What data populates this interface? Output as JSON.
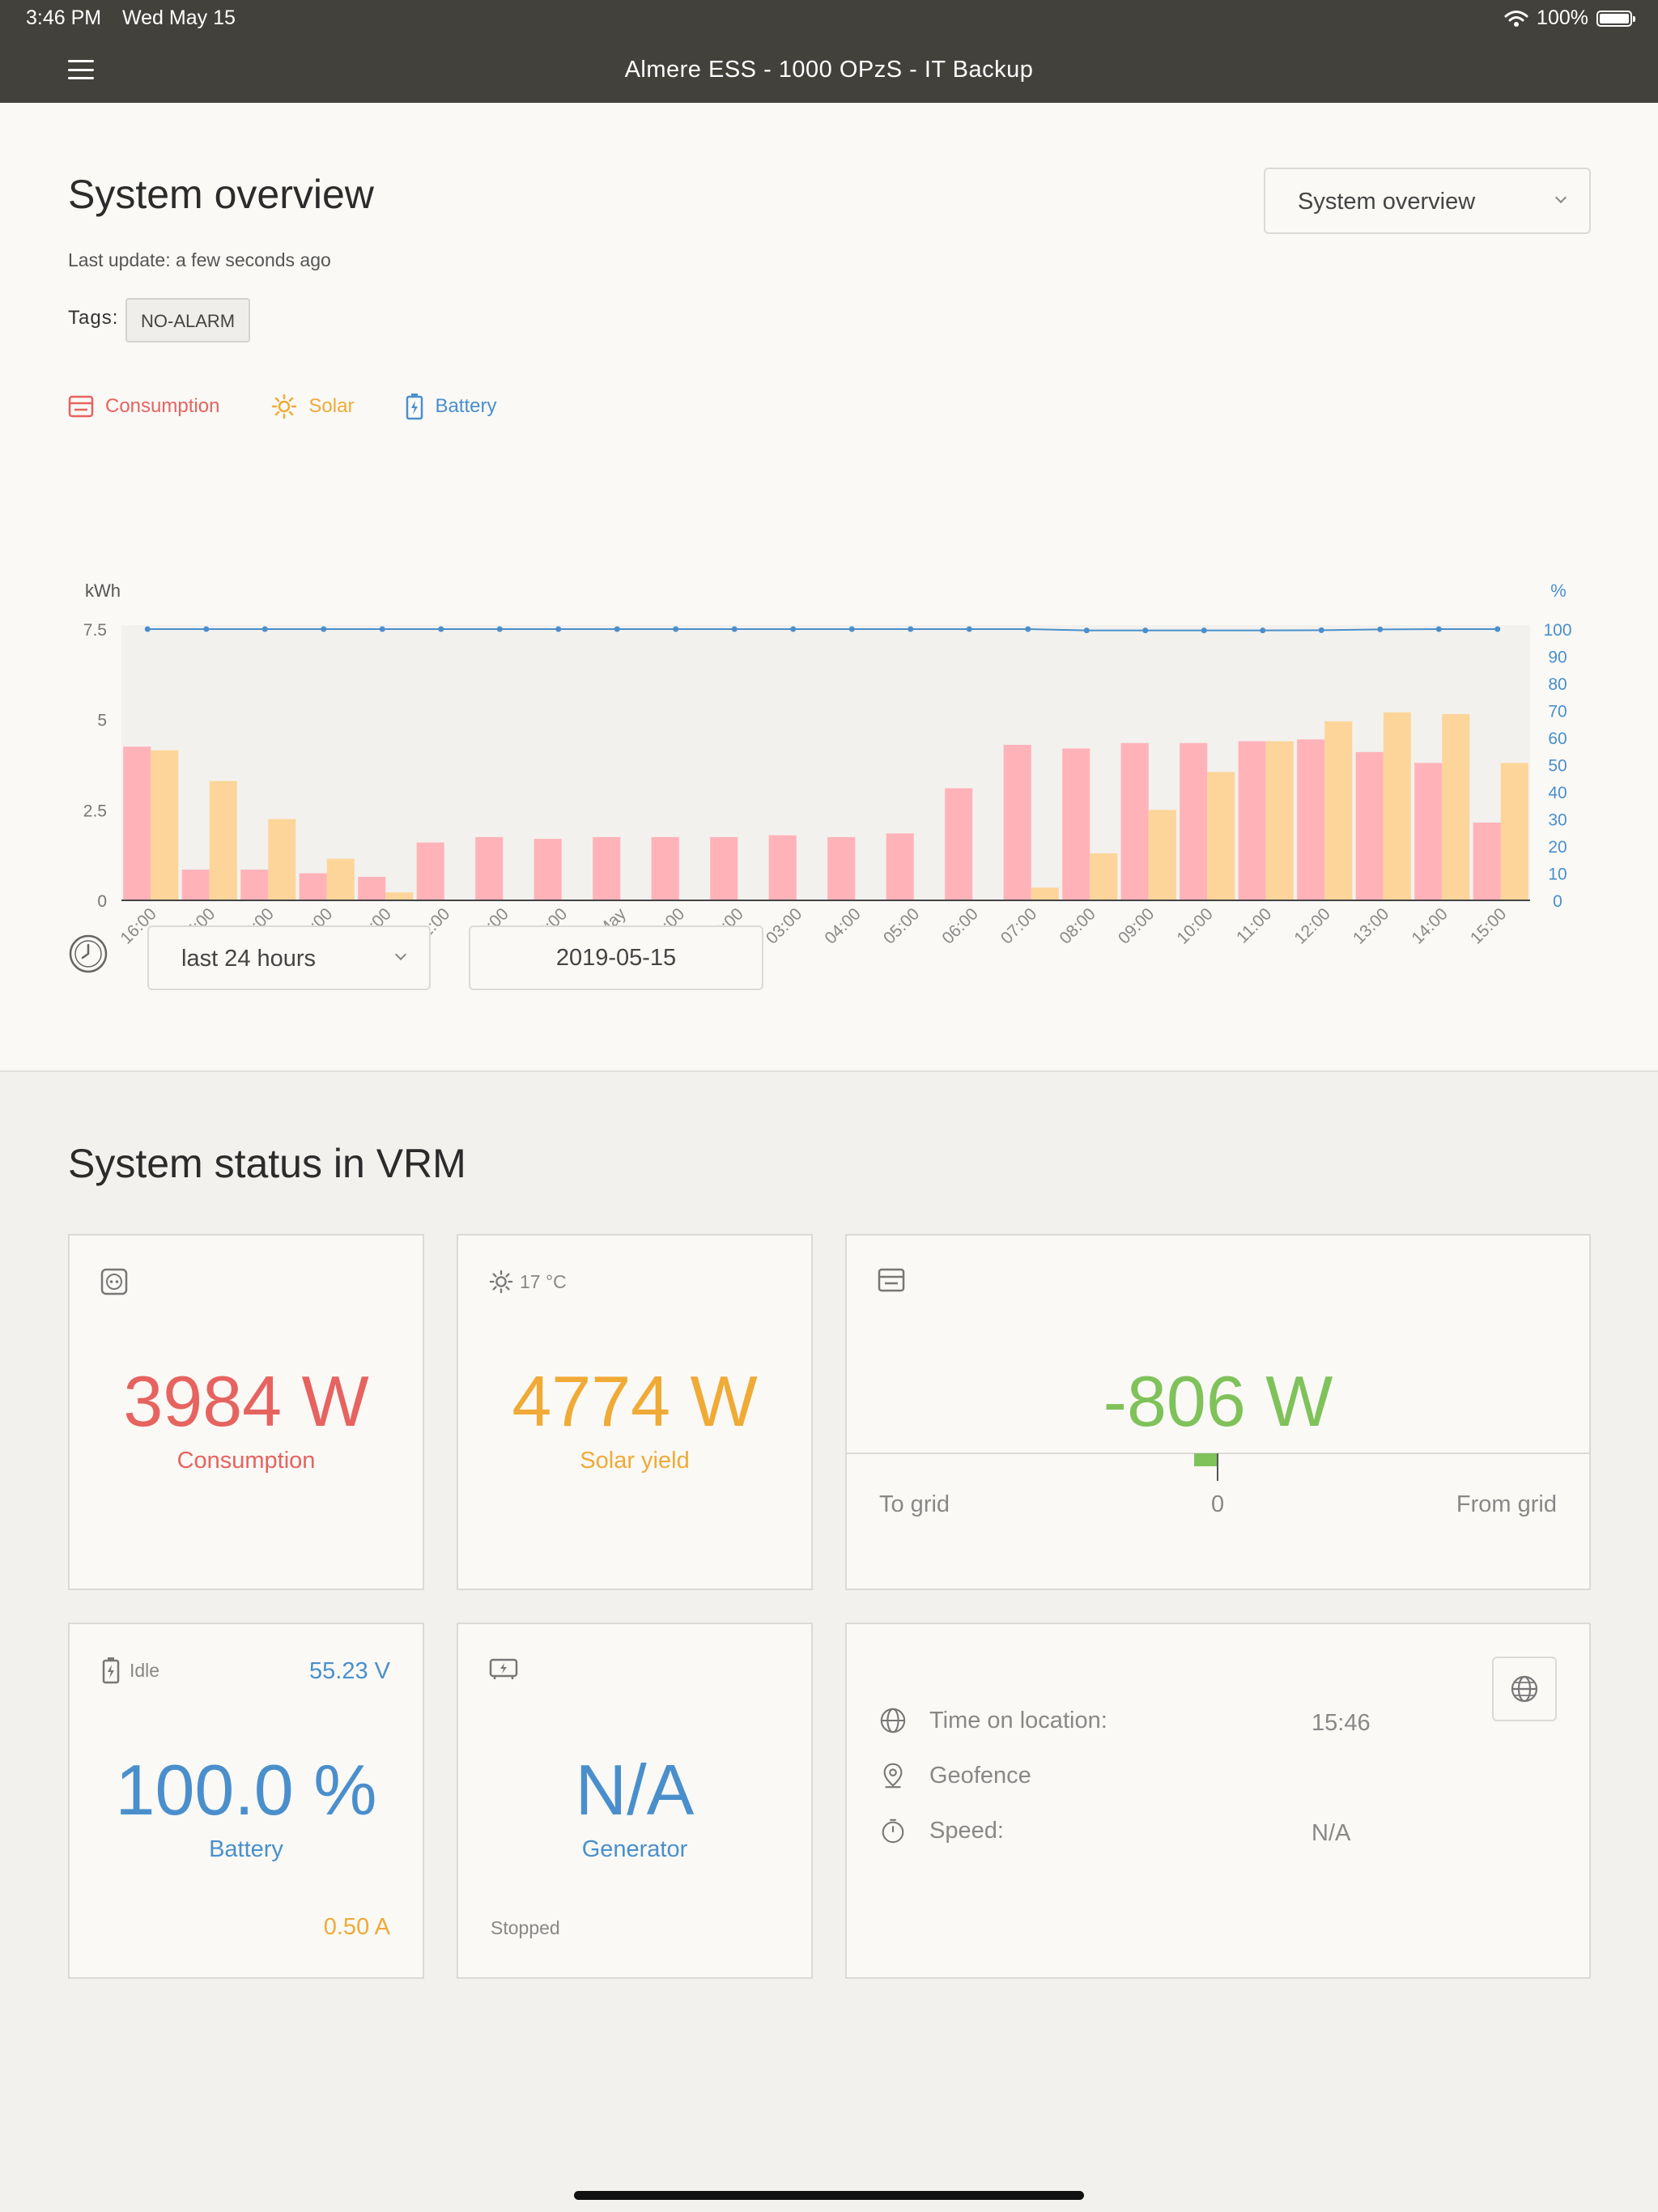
{
  "status_bar": {
    "time": "3:46 PM",
    "date": "Wed May 15",
    "battery": "100%"
  },
  "header": {
    "title": "Almere ESS - 1000 OPzS - IT Backup"
  },
  "overview": {
    "title": "System overview",
    "last_update": "Last update: a few seconds ago",
    "tags_label": "Tags:",
    "tag": "NO-ALARM",
    "view_select": "System overview",
    "legend": {
      "consumption": "Consumption",
      "solar": "Solar",
      "battery": "Battery"
    },
    "range_select": "last 24 hours",
    "date": "2019-05-15"
  },
  "colors": {
    "consumption": "#ffb3b8",
    "solar": "#fdd59a",
    "battery": "#4a8fcc",
    "accent_red": "#e6635f",
    "accent_orange": "#f0aa36",
    "accent_green": "#7fc25a",
    "header": "#43413c"
  },
  "chart_data": {
    "type": "bar",
    "ylabel_left": "kWh",
    "ylabel_right": "%",
    "yticks_left": [
      "7.5",
      "5",
      "2.5",
      "0"
    ],
    "ylim_left": [
      0,
      7.5
    ],
    "yticks_right": [
      "100",
      "90",
      "80",
      "70",
      "60",
      "50",
      "40",
      "30",
      "20",
      "10",
      "0"
    ],
    "ylim_right": [
      0,
      100
    ],
    "categories": [
      "16:00",
      "17:00",
      "18:00",
      "19:00",
      "20:00",
      "21:00",
      "22:00",
      "23:00",
      "15. May",
      "01:00",
      "02:00",
      "03:00",
      "04:00",
      "05:00",
      "06:00",
      "07:00",
      "08:00",
      "09:00",
      "10:00",
      "11:00",
      "12:00",
      "13:00",
      "14:00",
      "15:00"
    ],
    "series": [
      {
        "name": "Consumption",
        "type": "bar",
        "axis": "left",
        "values": [
          4.25,
          0.85,
          0.85,
          0.75,
          0.65,
          1.6,
          1.75,
          1.7,
          1.75,
          1.75,
          1.75,
          1.8,
          1.75,
          1.85,
          3.1,
          4.3,
          4.2,
          4.35,
          4.35,
          4.4,
          4.45,
          4.1,
          3.8,
          2.15
        ]
      },
      {
        "name": "Solar",
        "type": "bar",
        "axis": "left",
        "values": [
          4.15,
          3.3,
          2.25,
          1.15,
          0.22,
          0,
          0,
          0,
          0,
          0,
          0,
          0,
          0,
          0,
          0,
          0.35,
          1.3,
          2.5,
          3.55,
          4.4,
          4.95,
          5.2,
          5.15,
          3.8
        ]
      },
      {
        "name": "Battery",
        "type": "line",
        "axis": "right",
        "values": [
          100,
          100,
          100,
          100,
          100,
          100,
          100,
          100,
          100,
          100,
          100,
          100,
          100,
          100,
          100,
          100,
          99.5,
          99.5,
          99.5,
          99.5,
          99.6,
          99.9,
          100,
          100
        ]
      }
    ],
    "grid": false,
    "legend_position": "top-left"
  },
  "status": {
    "title": "System status in VRM",
    "consumption": {
      "value": "3984 W",
      "label": "Consumption"
    },
    "solar": {
      "temp": "17 °C",
      "value": "4774 W",
      "label": "Solar yield"
    },
    "grid": {
      "value": "-806 W",
      "to_grid": "To grid",
      "zero": "0",
      "from_grid": "From grid"
    },
    "battery": {
      "state": "Idle",
      "voltage": "55.23 V",
      "value": "100.0 %",
      "label": "Battery",
      "current": "0.50 A"
    },
    "generator": {
      "value": "N/A",
      "label": "Generator",
      "state": "Stopped"
    },
    "location": {
      "time_label": "Time on location:",
      "time_value": "15:46",
      "geofence_label": "Geofence",
      "speed_label": "Speed:",
      "speed_value": "N/A"
    }
  }
}
